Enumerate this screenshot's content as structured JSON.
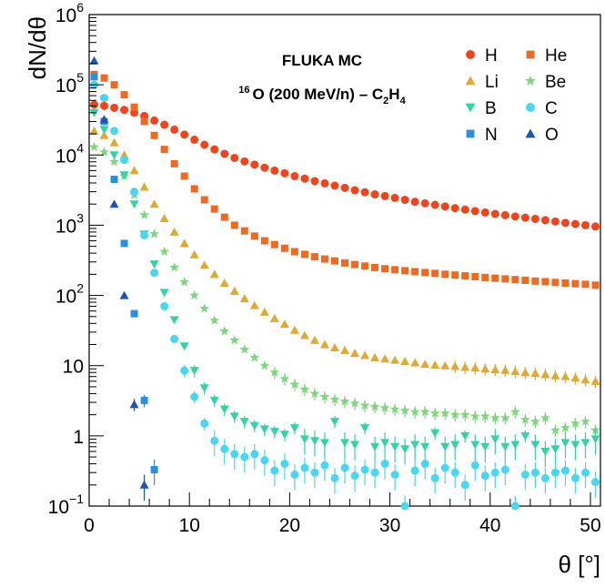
{
  "chart_data": {
    "type": "scatter",
    "title_line1": "FLUKA MC",
    "title_line2": {
      "iso": "16",
      "rest": "O (200 MeV/n) – C",
      "sub1": "2",
      "h": "H",
      "sub2": "4"
    },
    "xlabel": "θ [°]",
    "ylabel": "dN/dθ",
    "xlim": [
      0,
      51
    ],
    "ylim": [
      0.1,
      1000000
    ],
    "yscale": "log",
    "x_ticks": [
      "0",
      "10",
      "20",
      "30",
      "40",
      "50"
    ],
    "y_ticks": [
      {
        "label": "10",
        "exp": "−1",
        "value": 0.1
      },
      {
        "label": "1",
        "exp": "",
        "value": 1
      },
      {
        "label": "10",
        "exp": "",
        "value": 10
      },
      {
        "label": "10",
        "exp": "2",
        "value": 100
      },
      {
        "label": "10",
        "exp": "3",
        "value": 1000
      },
      {
        "label": "10",
        "exp": "4",
        "value": 10000
      },
      {
        "label": "10",
        "exp": "5",
        "value": 100000
      },
      {
        "label": "10",
        "exp": "6",
        "value": 1000000
      }
    ],
    "legend_position": "top-right",
    "series": [
      {
        "name": "H",
        "marker": "circle",
        "color": "#f2441c",
        "x": [
          0.5,
          1.5,
          2.5,
          3.5,
          4.5,
          5.5,
          6.5,
          7.5,
          8.5,
          9.5,
          10.5,
          11.5,
          12.5,
          13.5,
          14.5,
          15.5,
          16.5,
          17.5,
          18.5,
          19.5,
          20.5,
          21.5,
          22.5,
          23.5,
          24.5,
          25.5,
          26.5,
          27.5,
          28.5,
          29.5,
          30.5,
          31.5,
          32.5,
          33.5,
          34.5,
          35.5,
          36.5,
          37.5,
          38.5,
          39.5,
          40.5,
          41.5,
          42.5,
          43.5,
          44.5,
          45.5,
          46.5,
          47.5,
          48.5,
          49.5,
          50.5
        ],
        "y": [
          52000,
          50000,
          47000,
          44000,
          40000,
          36000,
          31000,
          27000,
          23000,
          19500,
          16500,
          14000,
          12000,
          10400,
          9100,
          8100,
          7300,
          6600,
          6000,
          5500,
          5000,
          4600,
          4250,
          3950,
          3650,
          3400,
          3150,
          2950,
          2750,
          2600,
          2450,
          2300,
          2150,
          2050,
          1950,
          1850,
          1750,
          1670,
          1590,
          1520,
          1450,
          1390,
          1330,
          1280,
          1230,
          1180,
          1130,
          1080,
          1040,
          1000,
          960
        ]
      },
      {
        "name": "He",
        "marker": "square",
        "color": "#ef6a20",
        "x": [
          0.5,
          1.5,
          2.5,
          3.5,
          4.5,
          5.5,
          6.5,
          7.5,
          8.5,
          9.5,
          10.5,
          11.5,
          12.5,
          13.5,
          14.5,
          15.5,
          16.5,
          17.5,
          18.5,
          19.5,
          20.5,
          21.5,
          22.5,
          23.5,
          24.5,
          25.5,
          26.5,
          27.5,
          28.5,
          29.5,
          30.5,
          31.5,
          32.5,
          33.5,
          34.5,
          35.5,
          36.5,
          37.5,
          38.5,
          39.5,
          40.5,
          41.5,
          42.5,
          43.5,
          44.5,
          45.5,
          46.5,
          47.5,
          48.5,
          49.5,
          50.5
        ],
        "y": [
          140000,
          125000,
          100000,
          72000,
          48000,
          30000,
          19000,
          12000,
          7500,
          5000,
          3300,
          2300,
          1700,
          1300,
          1000,
          830,
          700,
          600,
          530,
          470,
          420,
          385,
          355,
          330,
          310,
          290,
          275,
          262,
          250,
          240,
          232,
          225,
          218,
          212,
          206,
          200,
          195,
          190,
          185,
          180,
          176,
          172,
          168,
          164,
          160,
          157,
          153,
          150,
          147,
          144,
          140
        ]
      },
      {
        "name": "Li",
        "marker": "triangle-up",
        "color": "#deaa34",
        "x": [
          0.5,
          1.5,
          2.5,
          3.5,
          4.5,
          5.5,
          6.5,
          7.5,
          8.5,
          9.5,
          10.5,
          11.5,
          12.5,
          13.5,
          14.5,
          15.5,
          16.5,
          17.5,
          18.5,
          19.5,
          20.5,
          21.5,
          22.5,
          23.5,
          24.5,
          25.5,
          26.5,
          27.5,
          28.5,
          29.5,
          30.5,
          31.5,
          32.5,
          33.5,
          34.5,
          35.5,
          36.5,
          37.5,
          38.5,
          39.5,
          40.5,
          41.5,
          42.5,
          43.5,
          44.5,
          45.5,
          46.5,
          47.5,
          48.5,
          49.5,
          50.5
        ],
        "y": [
          22000,
          19000,
          15000,
          10000,
          6000,
          3500,
          2000,
          1250,
          800,
          550,
          380,
          270,
          200,
          150,
          115,
          90,
          72,
          58,
          47,
          39,
          32,
          27,
          23,
          20,
          18,
          16.5,
          15,
          14,
          13,
          12.5,
          12,
          11.5,
          11,
          10.5,
          10.2,
          10,
          9.8,
          9.5,
          9.3,
          9,
          8.8,
          8.6,
          8.3,
          8,
          7.8,
          7.5,
          7.2,
          7,
          6.7,
          6.3,
          6
        ]
      },
      {
        "name": "Be",
        "marker": "star",
        "color": "#7fd67f",
        "x": [
          0.5,
          1.5,
          2.5,
          3.5,
          4.5,
          5.5,
          6.5,
          7.5,
          8.5,
          9.5,
          10.5,
          11.5,
          12.5,
          13.5,
          14.5,
          15.5,
          16.5,
          17.5,
          18.5,
          19.5,
          20.5,
          21.5,
          22.5,
          23.5,
          24.5,
          25.5,
          26.5,
          27.5,
          28.5,
          29.5,
          30.5,
          31.5,
          32.5,
          33.5,
          34.5,
          35.5,
          36.5,
          37.5,
          38.5,
          39.5,
          40.5,
          41.5,
          42.5,
          43.5,
          44.5,
          45.5,
          46.5,
          47.5,
          48.5,
          49.5,
          50.5
        ],
        "y": [
          13000,
          11000,
          8000,
          5000,
          2700,
          1400,
          750,
          420,
          250,
          155,
          100,
          65,
          44,
          31,
          23,
          17,
          13,
          10,
          8,
          6.5,
          5.4,
          4.6,
          4,
          3.6,
          3.3,
          3.1,
          2.9,
          2.7,
          2.6,
          2.5,
          2.4,
          2.3,
          2.2,
          2.2,
          2.1,
          2.1,
          2,
          2,
          1.9,
          1.9,
          1.8,
          1.8,
          2.2,
          1.7,
          1.6,
          1.8,
          1.2,
          1.3,
          1.5,
          1.6,
          1.2
        ]
      },
      {
        "name": "B",
        "marker": "triangle-down",
        "color": "#33d3a8",
        "x": [
          0.5,
          1.5,
          2.5,
          3.5,
          4.5,
          5.5,
          6.5,
          7.5,
          8.5,
          9.5,
          10.5,
          11.5,
          12.5,
          13.5,
          14.5,
          15.5,
          16.5,
          17.5,
          18.5,
          19.5,
          20.5,
          21.5,
          22.5,
          23.5,
          24.5,
          25.5,
          26.5,
          27.5,
          28.5,
          29.5,
          30.5,
          31.5,
          32.5,
          33.5,
          34.5,
          35.5,
          36.5,
          37.5,
          38.5,
          39.5,
          40.5,
          41.5,
          42.5,
          43.5,
          44.5,
          45.5,
          46.5,
          47.5,
          48.5,
          49.5,
          50.5
        ],
        "y": [
          40000,
          23000,
          10000,
          5200,
          2000,
          750,
          280,
          110,
          45,
          19,
          8.5,
          4.8,
          3.2,
          2.4,
          1.9,
          1.6,
          1.4,
          1.25,
          1.15,
          1.05,
          1.3,
          0.9,
          0.85,
          0.8,
          1.6,
          0.8,
          0.75,
          1.3,
          0.7,
          0.8,
          0.7,
          0.65,
          0.75,
          0.7,
          1.1,
          0.7,
          0.75,
          1,
          0.75,
          0.7,
          0.9,
          0.7,
          0.75,
          1,
          0.75,
          0.6,
          0.65,
          0.8,
          0.75,
          0.8,
          0.9
        ]
      },
      {
        "name": "C",
        "marker": "circle",
        "color": "#49d6f2",
        "x": [
          0.5,
          1.5,
          2.5,
          3.5,
          4.5,
          5.5,
          6.5,
          7.5,
          8.5,
          9.5,
          10.5,
          11.5,
          12.5,
          13.5,
          14.5,
          15.5,
          16.5,
          17.5,
          18.5,
          19.5,
          20.5,
          21.5,
          22.5,
          23.5,
          24.5,
          25.5,
          26.5,
          27.5,
          28.5,
          29.5,
          30.5,
          31.5,
          32.5,
          33.5,
          34.5,
          35.5,
          36.5,
          37.5,
          38.5,
          39.5,
          40.5,
          41.5,
          42.5,
          43.5,
          44.5,
          45.5,
          46.5,
          47.5,
          48.5,
          49.5,
          50.5
        ],
        "y": [
          100000,
          65000,
          22000,
          8500,
          3000,
          720,
          210,
          70,
          24,
          8.5,
          3.6,
          1.5,
          0.85,
          0.65,
          0.55,
          0.5,
          0.55,
          0.45,
          0.32,
          0.4,
          0.28,
          0.35,
          0.3,
          0.38,
          0.25,
          0.35,
          0.27,
          0.33,
          0.3,
          0.4,
          0.28,
          0.1,
          0.32,
          0.4,
          0.25,
          0.35,
          0.3,
          0.2,
          0.38,
          0.27,
          0.3,
          0.33,
          0.1,
          0.28,
          0.3,
          0.25,
          0.3,
          0.32,
          0.25,
          0.3,
          0.22
        ]
      },
      {
        "name": "N",
        "marker": "square",
        "color": "#2a91e0",
        "x": [
          0.5,
          1.5,
          2.5,
          3.5,
          4.5,
          5.5,
          6.5
        ],
        "y": [
          130000,
          30000,
          4500,
          550,
          55,
          3.2,
          0.33
        ]
      },
      {
        "name": "O",
        "marker": "triangle-up",
        "color": "#1e55b5",
        "x": [
          0.5,
          1.5,
          2.5,
          3.5,
          4.5,
          5.5
        ],
        "y": [
          220000,
          32000,
          2000,
          100,
          2.8,
          0.2
        ]
      }
    ]
  }
}
